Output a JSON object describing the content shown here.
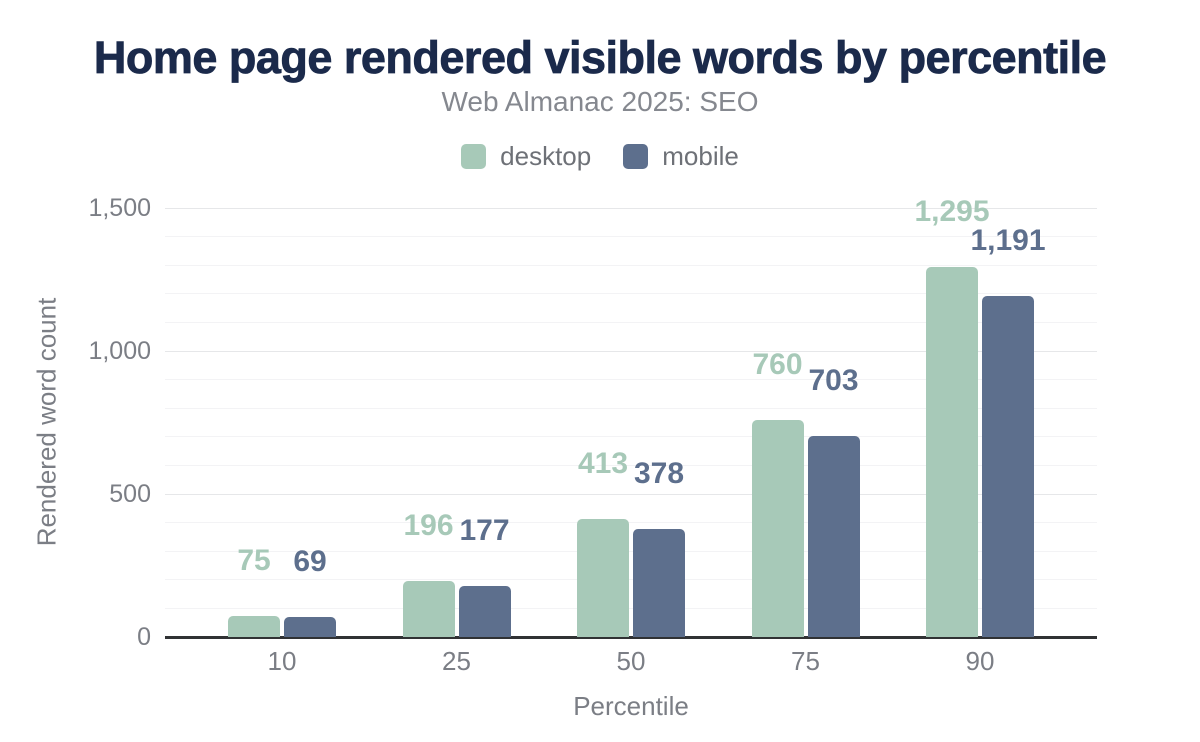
{
  "chart_data": {
    "type": "bar",
    "title": "Home page rendered visible words by percentile",
    "subtitle": "Web Almanac 2025: SEO",
    "categories": [
      "10",
      "25",
      "50",
      "75",
      "90"
    ],
    "series": [
      {
        "name": "desktop",
        "color": "#a7c9b8",
        "values": [
          75,
          196,
          413,
          760,
          1295
        ],
        "data_labels": [
          "75",
          "196",
          "413",
          "760",
          "1,295"
        ]
      },
      {
        "name": "mobile",
        "color": "#5d6f8d",
        "values": [
          69,
          177,
          378,
          703,
          1191
        ],
        "data_labels": [
          "69",
          "177",
          "378",
          "703",
          "1,191"
        ]
      }
    ],
    "xlabel": "Percentile",
    "ylabel": "Rendered word count",
    "ylim": [
      0,
      1500
    ],
    "yticks": [
      {
        "value": 0,
        "label": "0"
      },
      {
        "value": 500,
        "label": "500"
      },
      {
        "value": 1000,
        "label": "1,000"
      },
      {
        "value": 1500,
        "label": "1,500"
      }
    ],
    "minor_grid_step": 100,
    "major_grid_step": 500,
    "grid": true,
    "legend_position": "top"
  },
  "style": {
    "title_color": "#1b2a4b",
    "subtitle_color": "#85888f",
    "tick_color": "#7b7e85",
    "legend_text_color": "#6e7177",
    "axis_line_color": "#303234",
    "major_grid_color": "#e6e7e9",
    "minor_grid_color": "#f3f3f5",
    "background": "#ffffff"
  }
}
